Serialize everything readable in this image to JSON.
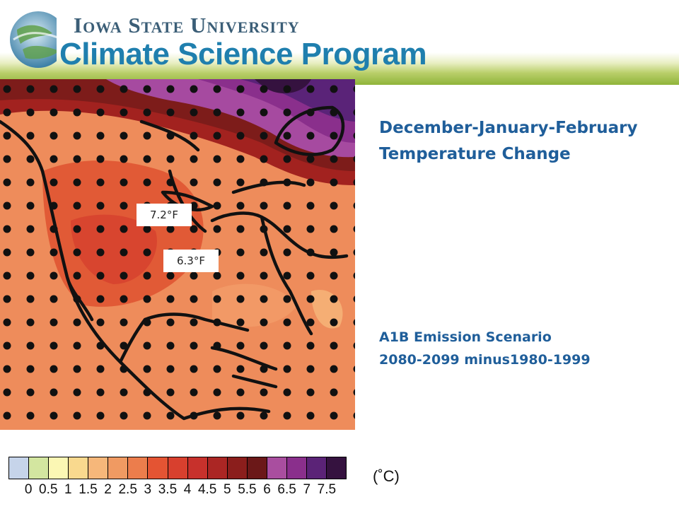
{
  "header": {
    "university": "Iowa State University",
    "program": "Climate Science Program",
    "colors": {
      "university": "#3b5e77",
      "program": "#1f7fae",
      "band": "#8fb43a"
    }
  },
  "map": {
    "annotations": [
      "7.2°F",
      "6.3°F"
    ],
    "icon": "north-america-temperature-map"
  },
  "titles": {
    "line1": "December-January-February",
    "line2": "Temperature Change",
    "scenario": "A1B Emission Scenario",
    "period": "2080-2099 minus1980-1999"
  },
  "legend": {
    "ticks": [
      "0",
      "0.5",
      "1",
      "1.5",
      "2",
      "2.5",
      "3",
      "3.5",
      "4",
      "4.5",
      "5",
      "5.5",
      "6",
      "6.5",
      "7",
      "7.5"
    ],
    "unit": "(˚C)",
    "colors": [
      "#c6d4ea",
      "#d3e6a0",
      "#fbf7b4",
      "#f9d98e",
      "#f6b77a",
      "#f09a62",
      "#ec7d4c",
      "#e45433",
      "#d8402e",
      "#c7312c",
      "#ab2624",
      "#8b1e1c",
      "#6b1818",
      "#a94e9f",
      "#8a2f8c",
      "#5b2377",
      "#35123f"
    ]
  }
}
